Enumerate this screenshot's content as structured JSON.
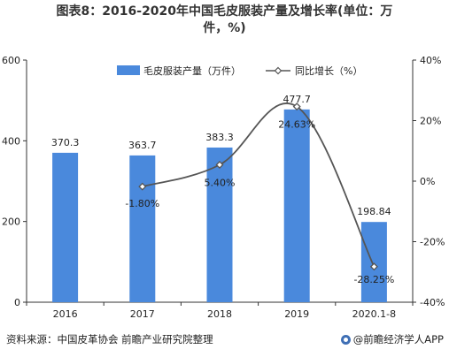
{
  "title_line1": "图表8：2016-2020年中国毛皮服装产量及增长率(单位：万",
  "title_line2": "件，%)",
  "source": "资料来源：中国皮革协会 前瞻产业研究院整理",
  "brand": "@前瞻经济学人APP",
  "colors": {
    "bar": "#4a89dc",
    "line": "#555555"
  },
  "chart_data": {
    "type": "bar",
    "categories": [
      "2016",
      "2017",
      "2018",
      "2019",
      "2020.1-8"
    ],
    "series": [
      {
        "name": "毛皮服装产量（万件）",
        "type": "bar",
        "axis": "left",
        "values": [
          370.3,
          363.7,
          383.3,
          477.7,
          198.84
        ],
        "labels": [
          "370.3",
          "363.7",
          "383.3",
          "477.7",
          "198.84"
        ]
      },
      {
        "name": "同比增长（%）",
        "type": "line",
        "axis": "right",
        "values": [
          null,
          -1.8,
          5.4,
          24.63,
          -28.25
        ],
        "labels": [
          "",
          "-1.80%",
          "5.40%",
          "24.63%",
          "-28.25%"
        ]
      }
    ],
    "yleft": {
      "min": 0,
      "max": 600,
      "ticks": [
        0,
        200,
        400,
        600
      ]
    },
    "yright": {
      "min": -40,
      "max": 40,
      "ticks": [
        "-40%",
        "-20%",
        "0%",
        "20%",
        "40%"
      ]
    },
    "legend": "top",
    "grid": false
  }
}
